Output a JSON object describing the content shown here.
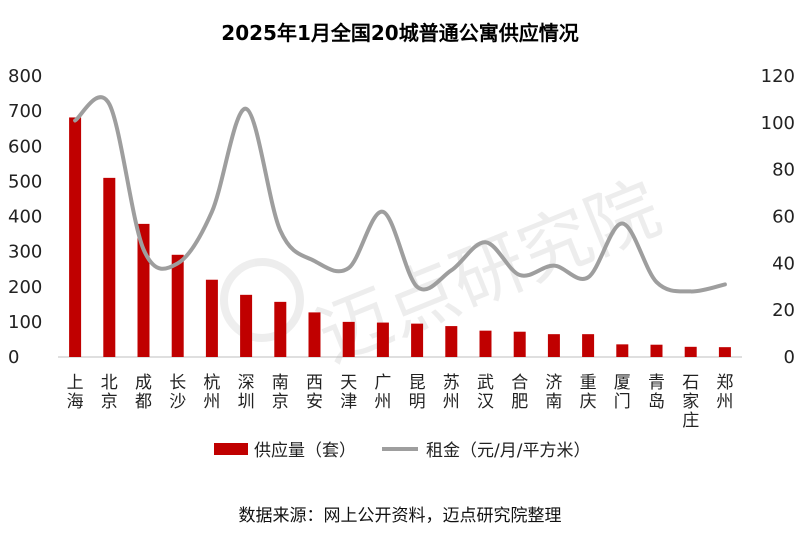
{
  "chart_data": {
    "type": "bar+line",
    "title": "2025年1月全国20城普通公寓供应情况",
    "categories": [
      "上海",
      "北京",
      "成都",
      "长沙",
      "杭州",
      "深圳",
      "南京",
      "西安",
      "天津",
      "广州",
      "昆明",
      "苏州",
      "武汉",
      "合肥",
      "济南",
      "重庆",
      "厦门",
      "青岛",
      "石家庄",
      "郑州"
    ],
    "series": [
      {
        "name": "供应量（套）",
        "type": "bar",
        "axis": "left",
        "color": "#c00000",
        "values": [
          682,
          510,
          379,
          291,
          220,
          177,
          157,
          127,
          100,
          98,
          95,
          88,
          75,
          72,
          65,
          65,
          36,
          35,
          29,
          28
        ]
      },
      {
        "name": "租金（元/月/平方米）",
        "type": "line",
        "axis": "right",
        "color": "#9e9e9e",
        "values": [
          101,
          108,
          46,
          40,
          62,
          106,
          54,
          41,
          38,
          62,
          30,
          37,
          49,
          35,
          39,
          34,
          57,
          32,
          28,
          31
        ]
      }
    ],
    "y_left": {
      "min": 0,
      "max": 800,
      "ticks": [
        0,
        100,
        200,
        300,
        400,
        500,
        600,
        700,
        800
      ]
    },
    "y_right": {
      "min": 0,
      "max": 120,
      "ticks": [
        0,
        20,
        40,
        60,
        80,
        100,
        120
      ]
    },
    "legend_position": "bottom",
    "grid": false
  },
  "watermark": "迈点研究院",
  "source": "数据来源：网上公开资料，迈点研究院整理"
}
